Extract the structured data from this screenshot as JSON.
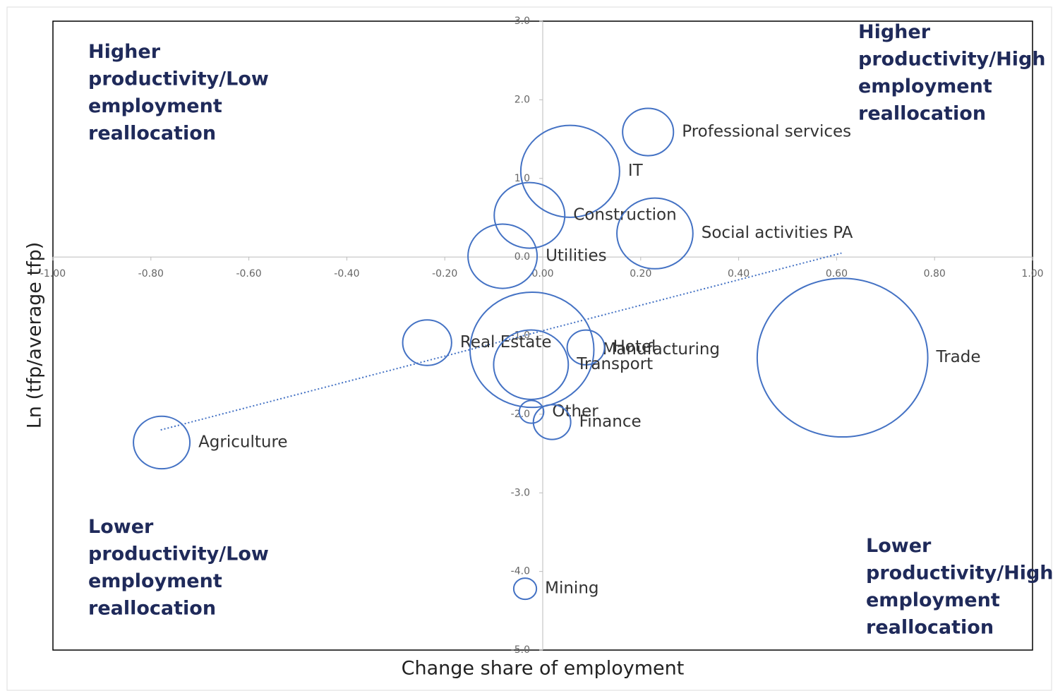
{
  "chart_data": {
    "type": "bubble",
    "x_label": "Change share of employment",
    "y_label": "Ln (tfp/average tfp)",
    "xlim": [
      -1.0,
      1.0
    ],
    "ylim": [
      -5.0,
      3.0
    ],
    "xticks": [
      {
        "value": -1.0,
        "label": "-1.00"
      },
      {
        "value": -0.8,
        "label": "-0.80"
      },
      {
        "value": -0.6,
        "label": "-0.60"
      },
      {
        "value": -0.4,
        "label": "-0.40"
      },
      {
        "value": -0.2,
        "label": "-0.20"
      },
      {
        "value": 0,
        "label": "0.00"
      },
      {
        "value": 0.2,
        "label": "0.20"
      },
      {
        "value": 0.4,
        "label": "0.40"
      },
      {
        "value": 0.6,
        "label": "0.60"
      },
      {
        "value": 0.8,
        "label": "0.80"
      },
      {
        "value": 1.0,
        "label": "1.00"
      }
    ],
    "yticks": [
      {
        "value": 3,
        "label": "3.0"
      },
      {
        "value": 2,
        "label": "2.0"
      },
      {
        "value": 1,
        "label": "1.0"
      },
      {
        "value": 0,
        "label": "0.0"
      },
      {
        "value": -1,
        "label": "-1.0"
      },
      {
        "value": -2,
        "label": "-2.0"
      },
      {
        "value": -3,
        "label": "-3.0"
      },
      {
        "value": -4,
        "label": "-4.0"
      },
      {
        "value": -5,
        "label": "-5.0"
      }
    ],
    "color": "#4472c4",
    "names": [
      "Professional services",
      "IT",
      "Construction",
      "Social activities PA",
      "Utilities",
      "Real Estate",
      "Manufacturing",
      "Hotel",
      "Transport",
      "Trade",
      "Other",
      "Finance",
      "Agriculture",
      "Mining"
    ],
    "x": [
      0.215,
      0.056,
      -0.027,
      0.229,
      -0.082,
      -0.236,
      -0.022,
      0.088,
      -0.024,
      0.612,
      -0.023,
      0.019,
      -0.778,
      -0.036
    ],
    "values": [
      1.59,
      1.09,
      0.53,
      0.3,
      0.01,
      -1.09,
      -1.18,
      -1.15,
      -1.37,
      -1.28,
      -1.97,
      -2.1,
      -2.36,
      -4.22
    ],
    "sizes": [
      13,
      49,
      25,
      29,
      24,
      12,
      77,
      7,
      28,
      146,
      3,
      7,
      16,
      2.6
    ],
    "trendline": {
      "x": [
        -0.78,
        0.61
      ],
      "y": [
        -2.2,
        0.05
      ]
    },
    "annotations": [
      [
        "Higher",
        "productivity/Low",
        "employment",
        "reallocation"
      ],
      [
        "Higher",
        "productivity/High",
        "employment",
        "reallocation"
      ],
      [
        "Lower",
        "productivity/Low",
        "employment",
        "reallocation"
      ],
      [
        "Lower",
        "productivity/High",
        "employment",
        "reallocation"
      ]
    ]
  }
}
